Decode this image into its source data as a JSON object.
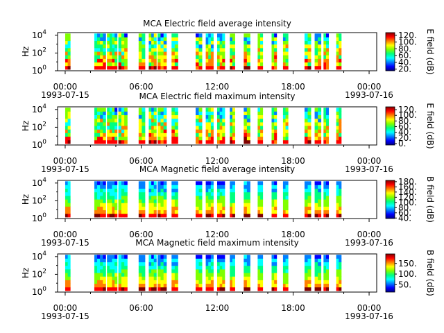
{
  "colors": {
    "colormap": [
      "#00007f",
      "#0000ff",
      "#007fff",
      "#00ffff",
      "#00ff7f",
      "#7fff00",
      "#ffff00",
      "#ff7f00",
      "#ff0000",
      "#7f0000"
    ],
    "gap": "#ffffff",
    "frame": "#000000"
  },
  "chart_data": [
    {
      "type": "heatmap",
      "title": "MCA  Electric field average intensity",
      "ylabel": "Hz",
      "y_scale": "log",
      "y_ticks": [
        {
          "base": "10",
          "exp": "0"
        },
        {
          "base": "10",
          "exp": "2"
        },
        {
          "base": "10",
          "exp": "4"
        }
      ],
      "x_ticks": [
        "00:00",
        "06:00",
        "12:00",
        "18:00",
        "00:00"
      ],
      "x_dates": {
        "start": "1993-07-15",
        "end": "1993-07-16"
      },
      "x_range_hours": [
        -0.6,
        24.6
      ],
      "colorbar": {
        "label": "E field (dB)",
        "range": [
          15,
          128
        ],
        "ticks": [
          "120.",
          "100.",
          "80.",
          "60.",
          "40.",
          "20."
        ],
        "tick_values": [
          120,
          100,
          80,
          60,
          40,
          20
        ]
      },
      "data_intervals_hours": [
        [
          0.0,
          0.4
        ],
        [
          2.3,
          3.2
        ],
        [
          3.3,
          4.1
        ],
        [
          4.2,
          4.9
        ],
        [
          5.8,
          6.3
        ],
        [
          6.6,
          7.2
        ],
        [
          7.3,
          8.0
        ],
        [
          8.4,
          8.9
        ],
        [
          10.3,
          10.8
        ],
        [
          11.1,
          11.7
        ],
        [
          12.0,
          12.6
        ],
        [
          13.0,
          13.4
        ],
        [
          14.1,
          14.6
        ],
        [
          15.2,
          15.6
        ],
        [
          16.3,
          16.7
        ],
        [
          17.2,
          17.6
        ],
        [
          18.9,
          19.4
        ],
        [
          19.7,
          20.2
        ],
        [
          20.4,
          20.8
        ],
        [
          21.4,
          21.8
        ]
      ]
    },
    {
      "type": "heatmap",
      "title": "MCA  Electric field maximum intensity",
      "ylabel": "Hz",
      "y_scale": "log",
      "y_ticks": [
        {
          "base": "10",
          "exp": "0"
        },
        {
          "base": "10",
          "exp": "2"
        },
        {
          "base": "10",
          "exp": "4"
        }
      ],
      "x_ticks": [
        "00:00",
        "06:00",
        "12:00",
        "18:00",
        "00:00"
      ],
      "x_dates": {
        "start": "1993-07-15",
        "end": "1993-07-16"
      },
      "x_range_hours": [
        -0.6,
        24.6
      ],
      "colorbar": {
        "label": "E field (dB)",
        "range": [
          -5,
          130
        ],
        "ticks": [
          "120.",
          "100.",
          "80.",
          "60.",
          "40.",
          "20.",
          "0."
        ],
        "tick_values": [
          120,
          100,
          80,
          60,
          40,
          20,
          0
        ]
      },
      "data_intervals_hours": [
        [
          0.0,
          0.4
        ],
        [
          2.3,
          3.2
        ],
        [
          3.3,
          4.1
        ],
        [
          4.2,
          4.9
        ],
        [
          5.8,
          6.3
        ],
        [
          6.6,
          7.2
        ],
        [
          7.3,
          8.0
        ],
        [
          8.4,
          8.9
        ],
        [
          10.3,
          10.8
        ],
        [
          11.1,
          11.7
        ],
        [
          12.0,
          12.6
        ],
        [
          13.0,
          13.4
        ],
        [
          14.1,
          14.6
        ],
        [
          15.2,
          15.6
        ],
        [
          16.3,
          16.7
        ],
        [
          17.2,
          17.6
        ],
        [
          18.9,
          19.4
        ],
        [
          19.7,
          20.2
        ],
        [
          20.4,
          20.8
        ],
        [
          21.4,
          21.8
        ]
      ]
    },
    {
      "type": "heatmap",
      "title": "MCA  Magnetic field average intensity",
      "ylabel": "Hz",
      "y_scale": "log",
      "y_ticks": [
        {
          "base": "10",
          "exp": "0"
        },
        {
          "base": "10",
          "exp": "2"
        },
        {
          "base": "10",
          "exp": "4"
        }
      ],
      "x_ticks": [
        "00:00",
        "06:00",
        "12:00",
        "18:00",
        "00:00"
      ],
      "x_dates": {
        "start": "1993-07-15",
        "end": "1993-07-16"
      },
      "x_range_hours": [
        -0.6,
        24.6
      ],
      "colorbar": {
        "label": "B field (dB)",
        "range": [
          38,
          185
        ],
        "ticks": [
          "180.",
          "160.",
          "140.",
          "120.",
          "100.",
          "80.",
          "60.",
          "40."
        ],
        "tick_values": [
          180,
          160,
          140,
          120,
          100,
          80,
          60,
          40
        ]
      },
      "data_intervals_hours": [
        [
          0.0,
          0.4
        ],
        [
          2.3,
          3.2
        ],
        [
          3.3,
          4.1
        ],
        [
          4.2,
          4.9
        ],
        [
          5.8,
          6.3
        ],
        [
          6.6,
          7.2
        ],
        [
          7.3,
          8.0
        ],
        [
          8.4,
          8.9
        ],
        [
          10.3,
          10.8
        ],
        [
          11.1,
          11.7
        ],
        [
          12.0,
          12.6
        ],
        [
          13.0,
          13.4
        ],
        [
          14.1,
          14.6
        ],
        [
          15.2,
          15.6
        ],
        [
          16.3,
          16.7
        ],
        [
          17.2,
          17.6
        ],
        [
          18.9,
          19.4
        ],
        [
          19.7,
          20.2
        ],
        [
          20.4,
          20.8
        ],
        [
          21.4,
          21.8
        ]
      ]
    },
    {
      "type": "heatmap",
      "title": "MCA  Magnetic field maximum intensity",
      "ylabel": "Hz",
      "y_scale": "log",
      "y_ticks": [
        {
          "base": "10",
          "exp": "0"
        },
        {
          "base": "10",
          "exp": "2"
        },
        {
          "base": "10",
          "exp": "4"
        }
      ],
      "x_ticks": [
        "00:00",
        "06:00",
        "12:00",
        "18:00",
        "00:00"
      ],
      "x_dates": {
        "start": "1993-07-15",
        "end": "1993-07-16"
      },
      "x_range_hours": [
        -0.6,
        24.6
      ],
      "colorbar": {
        "label": "B field (dB)",
        "range": [
          15,
          195
        ],
        "ticks": [
          "150.",
          "100.",
          "50."
        ],
        "tick_values": [
          150,
          100,
          50
        ]
      },
      "data_intervals_hours": [
        [
          0.0,
          0.4
        ],
        [
          2.3,
          3.2
        ],
        [
          3.3,
          4.1
        ],
        [
          4.2,
          4.9
        ],
        [
          5.8,
          6.3
        ],
        [
          6.6,
          7.2
        ],
        [
          7.3,
          8.0
        ],
        [
          8.4,
          8.9
        ],
        [
          10.3,
          10.8
        ],
        [
          11.1,
          11.7
        ],
        [
          12.0,
          12.6
        ],
        [
          13.0,
          13.4
        ],
        [
          14.1,
          14.6
        ],
        [
          15.2,
          15.6
        ],
        [
          16.3,
          16.7
        ],
        [
          17.2,
          17.6
        ],
        [
          18.9,
          19.4
        ],
        [
          19.7,
          20.2
        ],
        [
          20.4,
          20.8
        ],
        [
          21.4,
          21.8
        ]
      ]
    }
  ]
}
